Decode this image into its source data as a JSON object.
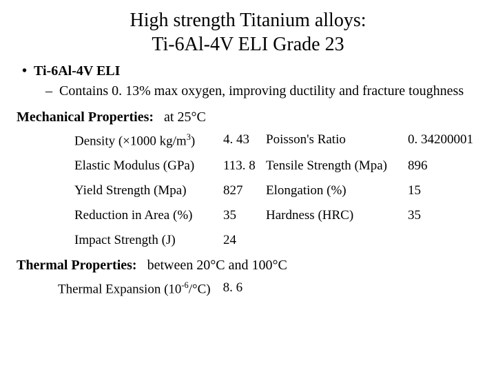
{
  "title": {
    "line1": "High strength Titanium alloys:",
    "line2": "Ti-6Al-4V ELI  Grade 23"
  },
  "bullets": {
    "l1": {
      "marker": "•",
      "text": "Ti-6Al-4V ELI"
    },
    "l2": {
      "marker": "–",
      "text": "Contains 0. 13% max oxygen, improving ductility and fracture toughness"
    }
  },
  "mechanical": {
    "label": "Mechanical Properties:",
    "condition": "at 25°C",
    "rows": [
      {
        "p1": "Density (×1000 kg/m",
        "p1sup": "3",
        "p1tail": ")",
        "v1": "4. 43",
        "p2": "Poisson's Ratio",
        "v2": "0. 34200001"
      },
      {
        "p1": "Elastic Modulus (GPa)",
        "p1sup": "",
        "p1tail": "",
        "v1": "113. 8",
        "p2": "Tensile Strength (Mpa)",
        "v2": "896"
      },
      {
        "p1": "Yield Strength (Mpa)",
        "p1sup": "",
        "p1tail": "",
        "v1": "827",
        "p2": "Elongation (%)",
        "v2": "15"
      },
      {
        "p1": "Reduction in Area (%)",
        "p1sup": "",
        "p1tail": "",
        "v1": "35",
        "p2": "Hardness (HRC)",
        "v2": "35"
      },
      {
        "p1": "Impact Strength (J)",
        "p1sup": "",
        "p1tail": "",
        "v1": "24",
        "p2": "",
        "v2": ""
      }
    ]
  },
  "thermal": {
    "label": "Thermal Properties:",
    "condition": "between 20°C and 100°C",
    "row": {
      "p_pre": "Thermal Expansion (10",
      "p_sup": "-6",
      "p_post": "/°C)",
      "v": "8. 6"
    }
  },
  "colors": {
    "bg": "#ffffff",
    "text": "#000000"
  },
  "fonts": {
    "title_size": 28,
    "body_size": 20,
    "table_size": 19
  }
}
